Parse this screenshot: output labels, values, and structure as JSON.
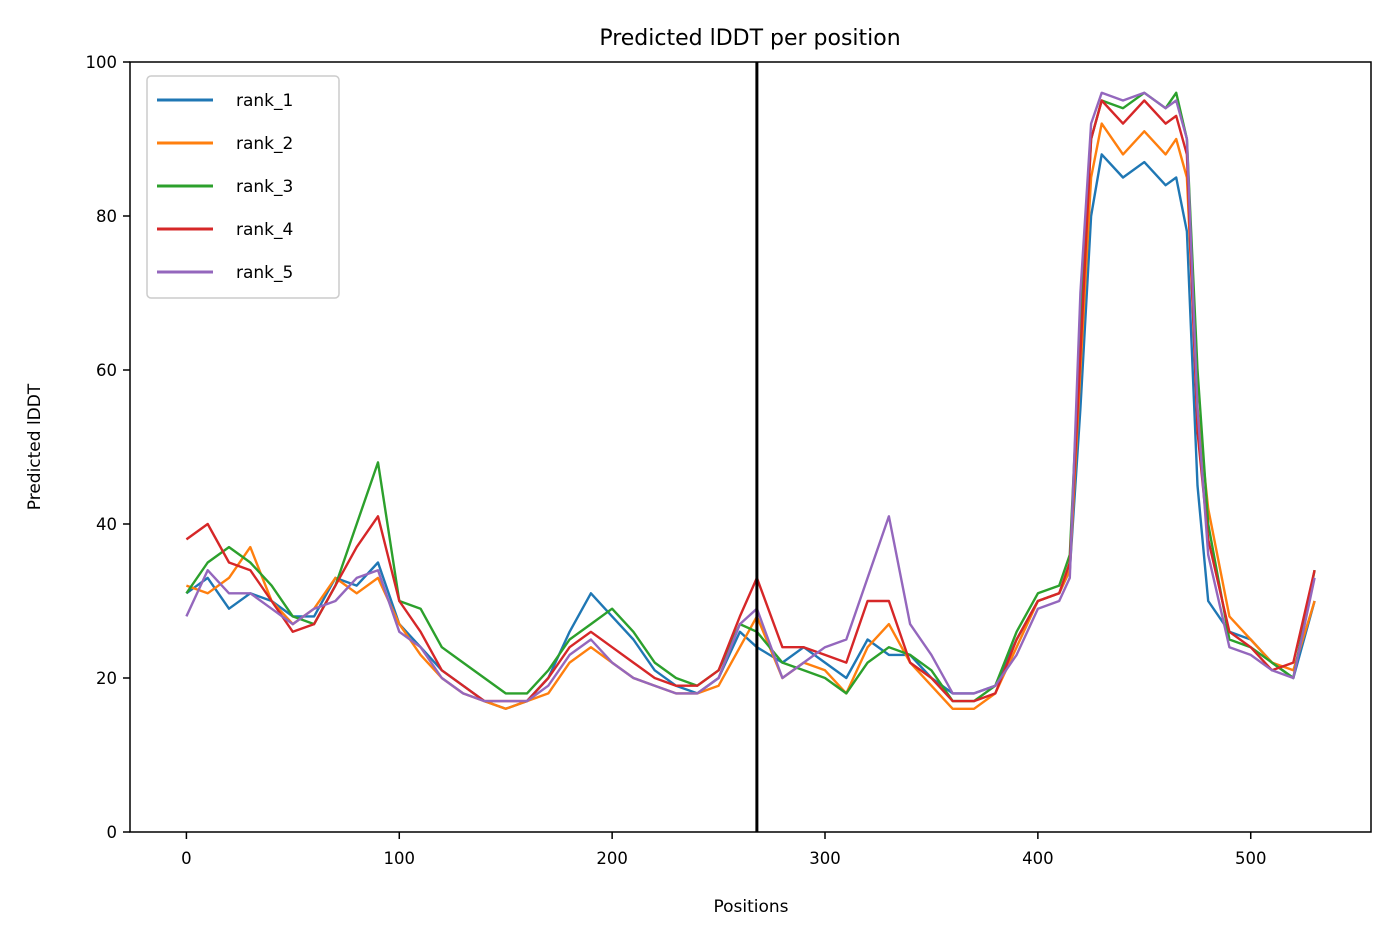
{
  "chart_data": {
    "type": "line",
    "title": "Predicted lDDT per position",
    "xlabel": "Positions",
    "ylabel": "Predicted lDDT",
    "xlim": [
      -26.5,
      556.5
    ],
    "ylim": [
      0,
      100
    ],
    "xticks": [
      "0",
      "100",
      "200",
      "300",
      "400",
      "500"
    ],
    "yticks": [
      "0",
      "20",
      "40",
      "60",
      "80",
      "100"
    ],
    "grid": false,
    "legend_position": "top-left",
    "vline_x": 268,
    "series": [
      {
        "name": "rank_1",
        "color": "#1f77b4",
        "x": [
          0,
          10,
          20,
          30,
          40,
          50,
          60,
          70,
          80,
          90,
          100,
          110,
          120,
          130,
          140,
          150,
          160,
          170,
          180,
          190,
          200,
          210,
          220,
          230,
          240,
          250,
          260,
          268,
          280,
          290,
          300,
          310,
          320,
          330,
          340,
          350,
          360,
          370,
          380,
          390,
          400,
          410,
          415,
          420,
          425,
          430,
          440,
          450,
          460,
          465,
          470,
          475,
          480,
          490,
          500,
          510,
          520,
          530
        ],
        "y": [
          31,
          33,
          29,
          31,
          30,
          28,
          28,
          33,
          32,
          35,
          27,
          24,
          21,
          19,
          17,
          16,
          17,
          20,
          26,
          31,
          28,
          25,
          21,
          19,
          18,
          20,
          26,
          24,
          22,
          24,
          22,
          20,
          25,
          23,
          23,
          20,
          18,
          18,
          19,
          25,
          30,
          31,
          34,
          55,
          80,
          88,
          85,
          87,
          84,
          85,
          78,
          45,
          30,
          26,
          25,
          22,
          20,
          30
        ]
      },
      {
        "name": "rank_2",
        "color": "#ff7f0e",
        "x": [
          0,
          10,
          20,
          30,
          40,
          50,
          60,
          70,
          80,
          90,
          100,
          110,
          120,
          130,
          140,
          150,
          160,
          170,
          180,
          190,
          200,
          210,
          220,
          230,
          240,
          250,
          260,
          268,
          280,
          290,
          300,
          310,
          320,
          330,
          340,
          350,
          360,
          370,
          380,
          390,
          400,
          410,
          415,
          420,
          425,
          430,
          440,
          450,
          460,
          465,
          470,
          475,
          480,
          490,
          500,
          510,
          520,
          530
        ],
        "y": [
          32,
          31,
          33,
          37,
          30,
          27,
          29,
          33,
          31,
          33,
          27,
          23,
          20,
          18,
          17,
          16,
          17,
          18,
          22,
          24,
          22,
          20,
          19,
          18,
          18,
          19,
          24,
          28,
          20,
          22,
          21,
          18,
          24,
          27,
          22,
          19,
          16,
          16,
          18,
          24,
          30,
          31,
          34,
          60,
          85,
          92,
          88,
          91,
          88,
          90,
          85,
          55,
          42,
          28,
          25,
          22,
          21,
          30
        ]
      },
      {
        "name": "rank_3",
        "color": "#2ca02c",
        "x": [
          0,
          10,
          20,
          30,
          40,
          50,
          60,
          70,
          80,
          90,
          100,
          110,
          120,
          130,
          140,
          150,
          160,
          170,
          180,
          190,
          200,
          210,
          220,
          230,
          240,
          250,
          260,
          268,
          280,
          290,
          300,
          310,
          320,
          330,
          340,
          350,
          360,
          370,
          380,
          390,
          400,
          410,
          415,
          420,
          425,
          430,
          440,
          450,
          460,
          465,
          470,
          475,
          480,
          490,
          500,
          510,
          520,
          530
        ],
        "y": [
          31,
          35,
          37,
          35,
          32,
          28,
          27,
          32,
          40,
          48,
          30,
          29,
          24,
          22,
          20,
          18,
          18,
          21,
          25,
          27,
          29,
          26,
          22,
          20,
          19,
          21,
          27,
          26,
          22,
          21,
          20,
          18,
          22,
          24,
          23,
          21,
          17,
          17,
          19,
          26,
          31,
          32,
          36,
          65,
          90,
          95,
          94,
          96,
          94,
          96,
          90,
          60,
          40,
          25,
          24,
          22,
          20,
          34
        ]
      },
      {
        "name": "rank_4",
        "color": "#d62728",
        "x": [
          0,
          10,
          20,
          30,
          40,
          50,
          60,
          70,
          80,
          90,
          100,
          110,
          120,
          130,
          140,
          150,
          160,
          170,
          180,
          190,
          200,
          210,
          220,
          230,
          240,
          250,
          260,
          268,
          280,
          290,
          300,
          310,
          320,
          330,
          340,
          350,
          360,
          370,
          380,
          390,
          400,
          410,
          415,
          420,
          425,
          430,
          440,
          450,
          460,
          465,
          470,
          475,
          480,
          490,
          500,
          510,
          520,
          530
        ],
        "y": [
          38,
          40,
          35,
          34,
          30,
          26,
          27,
          32,
          37,
          41,
          30,
          26,
          21,
          19,
          17,
          17,
          17,
          20,
          24,
          26,
          24,
          22,
          20,
          19,
          19,
          21,
          28,
          33,
          24,
          24,
          23,
          22,
          30,
          30,
          22,
          20,
          17,
          17,
          18,
          25,
          30,
          31,
          35,
          62,
          90,
          95,
          92,
          95,
          92,
          93,
          88,
          52,
          38,
          26,
          24,
          21,
          22,
          34
        ]
      },
      {
        "name": "rank_5",
        "color": "#9467bd",
        "x": [
          0,
          10,
          20,
          30,
          40,
          50,
          60,
          70,
          80,
          90,
          100,
          110,
          120,
          130,
          140,
          150,
          160,
          170,
          180,
          190,
          200,
          210,
          220,
          230,
          240,
          250,
          260,
          268,
          280,
          290,
          300,
          310,
          320,
          330,
          340,
          350,
          360,
          370,
          380,
          390,
          400,
          410,
          415,
          420,
          425,
          430,
          440,
          450,
          460,
          465,
          470,
          475,
          480,
          490,
          500,
          510,
          520,
          530
        ],
        "y": [
          28,
          34,
          31,
          31,
          29,
          27,
          29,
          30,
          33,
          34,
          26,
          24,
          20,
          18,
          17,
          17,
          17,
          19,
          23,
          25,
          22,
          20,
          19,
          18,
          18,
          20,
          27,
          29,
          20,
          22,
          24,
          25,
          33,
          41,
          27,
          23,
          18,
          18,
          19,
          23,
          29,
          30,
          33,
          70,
          92,
          96,
          95,
          96,
          94,
          95,
          90,
          55,
          36,
          24,
          23,
          21,
          20,
          33
        ]
      }
    ]
  }
}
